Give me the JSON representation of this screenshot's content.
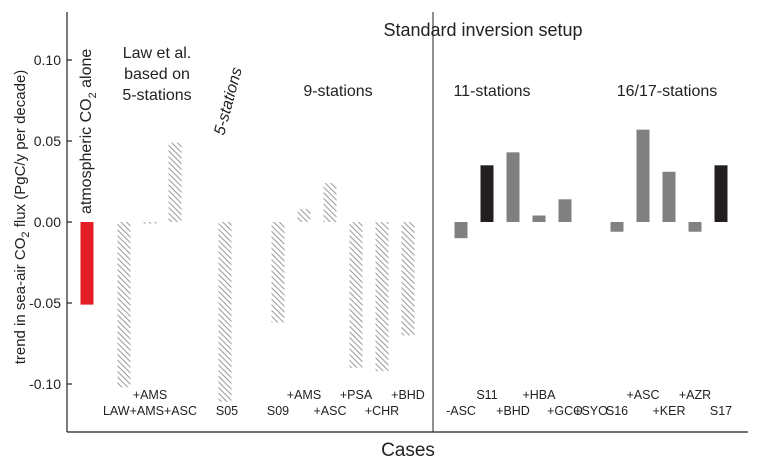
{
  "chart_data": {
    "type": "bar",
    "title": "Standard inversion setup",
    "xlabel": "Cases",
    "ylabel": {
      "pre": "trend in sea-air CO",
      "sub": "2",
      "post": " flux (PgC/y per decade)"
    },
    "ylim": [
      -0.12,
      0.13
    ],
    "yticks": [
      {
        "value": 0.1,
        "label": "0.10"
      },
      {
        "value": 0.05,
        "label": "0.05"
      },
      {
        "value": 0.0,
        "label": "0.00"
      },
      {
        "value": -0.05,
        "label": "-0.05"
      },
      {
        "value": -0.1,
        "label": "-0.10"
      }
    ],
    "bar_styles": {
      "atmospheric": "#e41e26",
      "hatched": "#999999",
      "gray": "#808080",
      "black": "#231f20"
    },
    "bars": [
      {
        "id": "atm-co2",
        "value": -0.051,
        "style": "atmospheric"
      },
      {
        "id": "LAW",
        "value": -0.102,
        "style": "hatched"
      },
      {
        "id": "LAW+AMS",
        "value": -0.001,
        "style": "hatched"
      },
      {
        "id": "LAW+AMS+ASC",
        "value": 0.049,
        "style": "hatched"
      },
      {
        "id": "S05",
        "value": -0.111,
        "style": "hatched"
      },
      {
        "id": "S09",
        "value": -0.062,
        "style": "hatched"
      },
      {
        "id": "S09+AMS",
        "value": 0.008,
        "style": "hatched"
      },
      {
        "id": "S09+ASC",
        "value": 0.024,
        "style": "hatched"
      },
      {
        "id": "S09+PSA",
        "value": -0.09,
        "style": "hatched"
      },
      {
        "id": "S09+CHR",
        "value": -0.092,
        "style": "hatched"
      },
      {
        "id": "S09+BHD",
        "value": -0.07,
        "style": "hatched"
      },
      {
        "id": "S11-ASC",
        "value": -0.01,
        "style": "gray"
      },
      {
        "id": "S11",
        "value": 0.035,
        "style": "black"
      },
      {
        "id": "S11+BHD",
        "value": 0.043,
        "style": "gray"
      },
      {
        "id": "S11+HBA",
        "value": 0.004,
        "style": "gray"
      },
      {
        "id": "S11+GCO",
        "value": 0.014,
        "style": "gray"
      },
      {
        "id": "S16",
        "value": -0.006,
        "style": "gray"
      },
      {
        "id": "S16+ASC",
        "value": 0.057,
        "style": "gray"
      },
      {
        "id": "S16+KER",
        "value": 0.031,
        "style": "gray"
      },
      {
        "id": "S16+AZR",
        "value": -0.006,
        "style": "gray"
      },
      {
        "id": "S17",
        "value": 0.035,
        "style": "black"
      }
    ],
    "case_labels": [
      {
        "text": "+AMS",
        "row": 1
      },
      {
        "text": "LAW+AMS+ASC",
        "row": 2
      },
      {
        "text": "S05",
        "row": 2
      },
      {
        "text": "+AMS",
        "row": 1
      },
      {
        "text": "S09",
        "row": 2
      },
      {
        "text": "+ASC",
        "row": 2
      },
      {
        "text": "+PSA",
        "row": 1
      },
      {
        "text": "+CHR",
        "row": 2
      },
      {
        "text": "+BHD",
        "row": 1
      },
      {
        "text": "S11",
        "row": 1
      },
      {
        "text": "-ASC",
        "row": 2
      },
      {
        "text": "+BHD",
        "row": 2
      },
      {
        "text": "+HBA",
        "row": 1
      },
      {
        "text": "+GCO",
        "row": 2
      },
      {
        "text": "+SYO",
        "row": 2
      },
      {
        "text": "+ASC",
        "row": 1
      },
      {
        "text": "S16",
        "row": 2
      },
      {
        "text": "+KER",
        "row": 2
      },
      {
        "text": "+AZR",
        "row": 1
      },
      {
        "text": "S17",
        "row": 2
      }
    ],
    "group_labels": {
      "law": {
        "line1": "Law et al.",
        "line2": "based on",
        "line3": "5-stations"
      },
      "five": "5-stations",
      "nine": "9-stations",
      "eleven": "11-stations",
      "sixteen": "16/17-stations"
    },
    "annotation": {
      "pre": "atmospheric CO",
      "sub": "2",
      "post": " alone"
    }
  }
}
